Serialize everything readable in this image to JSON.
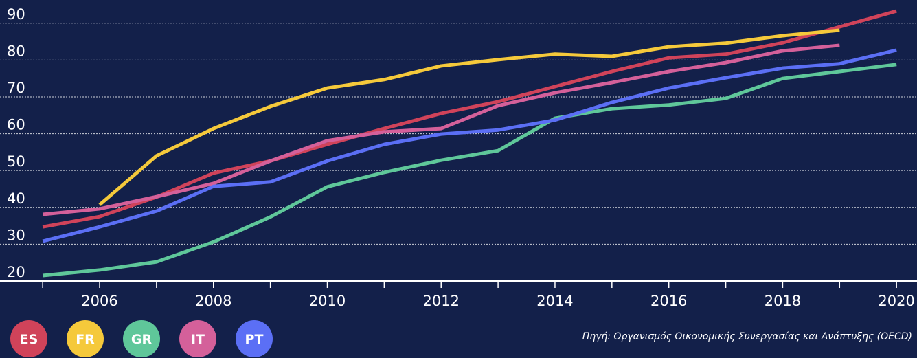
{
  "chart_data": {
    "type": "line",
    "x": [
      2005,
      2006,
      2007,
      2008,
      2009,
      2010,
      2011,
      2012,
      2013,
      2014,
      2015,
      2016,
      2017,
      2018,
      2019,
      2020
    ],
    "series": [
      {
        "name": "ES",
        "color": "#d0435a",
        "values": [
          34.7,
          37.5,
          42.8,
          49.3,
          52.6,
          57.1,
          61.4,
          65.5,
          68.7,
          72.8,
          76.9,
          80.6,
          81.6,
          84.7,
          89,
          93.3
        ]
      },
      {
        "name": "FR",
        "color": "#f5c93b",
        "values": [
          null,
          40.7,
          54,
          61.4,
          67.4,
          72.4,
          74.7,
          78.4,
          80.1,
          81.6,
          81,
          83.6,
          84.6,
          86.6,
          88.1,
          null
        ]
      },
      {
        "name": "GR",
        "color": "#5fc79a",
        "values": [
          21.5,
          23,
          25.2,
          30.6,
          37.4,
          45.6,
          49.5,
          52.8,
          55.4,
          64.2,
          66.8,
          67.8,
          69.6,
          75,
          76.9,
          78.8
        ]
      },
      {
        "name": "IT",
        "color": "#d4609a",
        "values": [
          38.1,
          39.6,
          42.9,
          46.5,
          52.6,
          58.1,
          60.5,
          61.4,
          67.6,
          71.1,
          73.9,
          76.9,
          79.3,
          82.5,
          84,
          null
        ]
      },
      {
        "name": "PT",
        "color": "#5b6ff5",
        "values": [
          30.8,
          34.7,
          39,
          45.7,
          46.9,
          52.6,
          57.1,
          59.9,
          61,
          63.7,
          68.5,
          72.4,
          75.2,
          77.8,
          79,
          82.7
        ]
      }
    ],
    "xlim": [
      2004.25,
      2020.36
    ],
    "xticks": [
      2006,
      2008,
      2010,
      2012,
      2014,
      2016,
      2018,
      2020
    ],
    "ylim": [
      20,
      96.3
    ],
    "yticks": [
      20,
      30,
      40,
      50,
      60,
      70,
      80,
      90
    ],
    "grid": true,
    "source": "Πηγή: Οργανισμός Οικονομικής Συνεργασίας και Ανάπτυξης (OECD)"
  }
}
